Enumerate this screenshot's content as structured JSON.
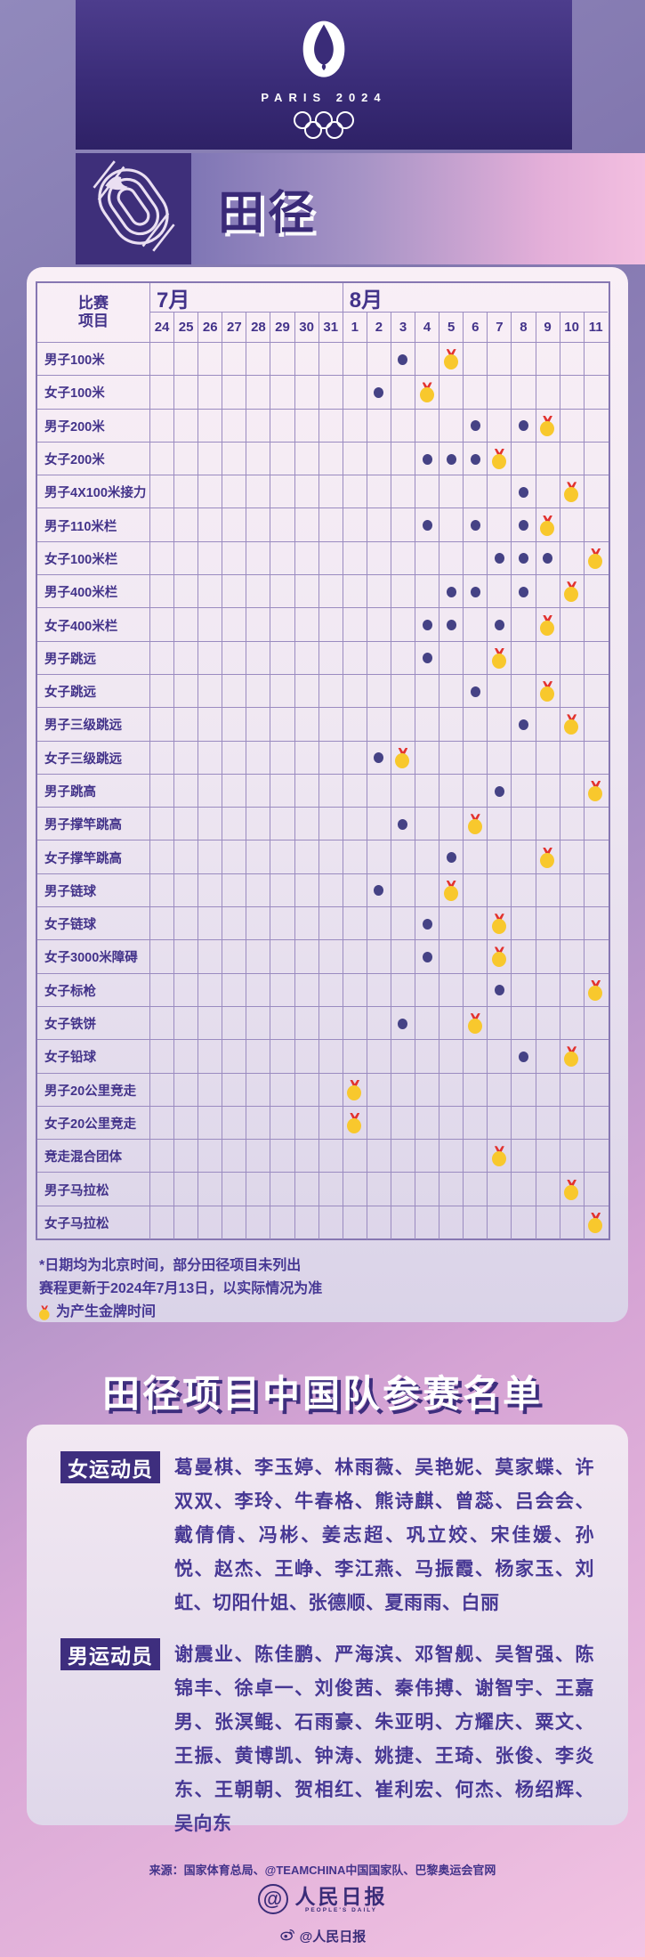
{
  "header": {
    "wordmark": "PARIS 2024"
  },
  "banner": {
    "title": "田径"
  },
  "schedule": {
    "corner": [
      "比赛",
      "项目"
    ],
    "months": [
      {
        "label": "7月",
        "days": [
          24,
          25,
          26,
          27,
          28,
          29,
          30,
          31
        ]
      },
      {
        "label": "8月",
        "days": [
          1,
          2,
          3,
          4,
          5,
          6,
          7,
          8,
          9,
          10,
          11
        ]
      }
    ],
    "gold_month": "8月",
    "events": [
      {
        "name": "男子100米",
        "dots": [
          3
        ],
        "gold": 5
      },
      {
        "name": "女子100米",
        "dots": [
          2
        ],
        "gold": 4
      },
      {
        "name": "男子200米",
        "dots": [
          6,
          8
        ],
        "gold": 9
      },
      {
        "name": "女子200米",
        "dots": [
          4,
          5,
          6
        ],
        "gold": 7
      },
      {
        "name": "男子4X100米接力",
        "dots": [
          8
        ],
        "gold": 10
      },
      {
        "name": "男子110米栏",
        "dots": [
          4,
          6,
          8
        ],
        "gold": 9
      },
      {
        "name": "女子100米栏",
        "dots": [
          7,
          8,
          9
        ],
        "gold": 11
      },
      {
        "name": "男子400米栏",
        "dots": [
          5,
          6,
          8
        ],
        "gold": 10
      },
      {
        "name": "女子400米栏",
        "dots": [
          4,
          5,
          7
        ],
        "gold": 9
      },
      {
        "name": "男子跳远",
        "dots": [
          4
        ],
        "gold": 7
      },
      {
        "name": "女子跳远",
        "dots": [
          6
        ],
        "gold": 9
      },
      {
        "name": "男子三级跳远",
        "dots": [
          8
        ],
        "gold": 10
      },
      {
        "name": "女子三级跳远",
        "dots": [
          2
        ],
        "gold": 3
      },
      {
        "name": "男子跳高",
        "dots": [
          7
        ],
        "gold": 11
      },
      {
        "name": "男子撑竿跳高",
        "dots": [
          3
        ],
        "gold": 6
      },
      {
        "name": "女子撑竿跳高",
        "dots": [
          5
        ],
        "gold": 9
      },
      {
        "name": "男子链球",
        "dots": [
          2
        ],
        "gold": 5
      },
      {
        "name": "女子链球",
        "dots": [
          4
        ],
        "gold": 7
      },
      {
        "name": "女子3000米障碍",
        "dots": [
          4
        ],
        "gold": 7
      },
      {
        "name": "女子标枪",
        "dots": [
          7
        ],
        "gold": 11
      },
      {
        "name": "女子铁饼",
        "dots": [
          3
        ],
        "gold": 6
      },
      {
        "name": "女子铅球",
        "dots": [
          8
        ],
        "gold": 10
      },
      {
        "name": "男子20公里竞走",
        "dots": [],
        "gold": 1
      },
      {
        "name": "女子20公里竞走",
        "dots": [],
        "gold": 1
      },
      {
        "name": "竞走混合团体",
        "dots": [],
        "gold": 7
      },
      {
        "name": "男子马拉松",
        "dots": [],
        "gold": 10
      },
      {
        "name": "女子马拉松",
        "dots": [],
        "gold": 11
      }
    ]
  },
  "footnotes": {
    "line1": "*日期均为北京时间，部分田径项目未列出",
    "line2": "赛程更新于2024年7月13日，以实际情况为准",
    "line3": "为产生金牌时间"
  },
  "roster": {
    "title": "田径项目中国队参赛名单",
    "groups": [
      {
        "label": "女运动员",
        "names": "葛曼棋、李玉婷、林雨薇、吴艳妮、莫家蝶、许双双、李玲、牛春格、熊诗麒、曾蕊、吕会会、戴倩倩、冯彬、姜志超、巩立姣、宋佳媛、孙悦、赵杰、王峥、李江燕、马振霞、杨家玉、刘虹、切阳什姐、张德顺、夏雨雨、白丽"
      },
      {
        "label": "男运动员",
        "names": "谢震业、陈佳鹏、严海滨、邓智舰、吴智强、陈锦丰、徐卓一、刘俊茜、秦伟搏、谢智宇、王嘉男、张溟鲲、石雨豪、朱亚明、方耀庆、粟文、王振、黄博凯、钟涛、姚捷、王琦、张俊、李炎东、王朝朝、贺相红、崔利宏、何杰、杨绍辉、吴向东"
      }
    ]
  },
  "source": "来源：国家体育总局、@TEAMCHINA中国国家队、巴黎奥运会官网",
  "footer": {
    "logo_cn": "人民日报",
    "logo_en": "PEOPLE'S DAILY",
    "weibo": "@人民日报"
  },
  "colors": {
    "ink": "#43338A",
    "gold": "#F8C82D",
    "ribbon": "#E2332F",
    "dot": "#454285",
    "header_bg": "#3A2C78"
  }
}
